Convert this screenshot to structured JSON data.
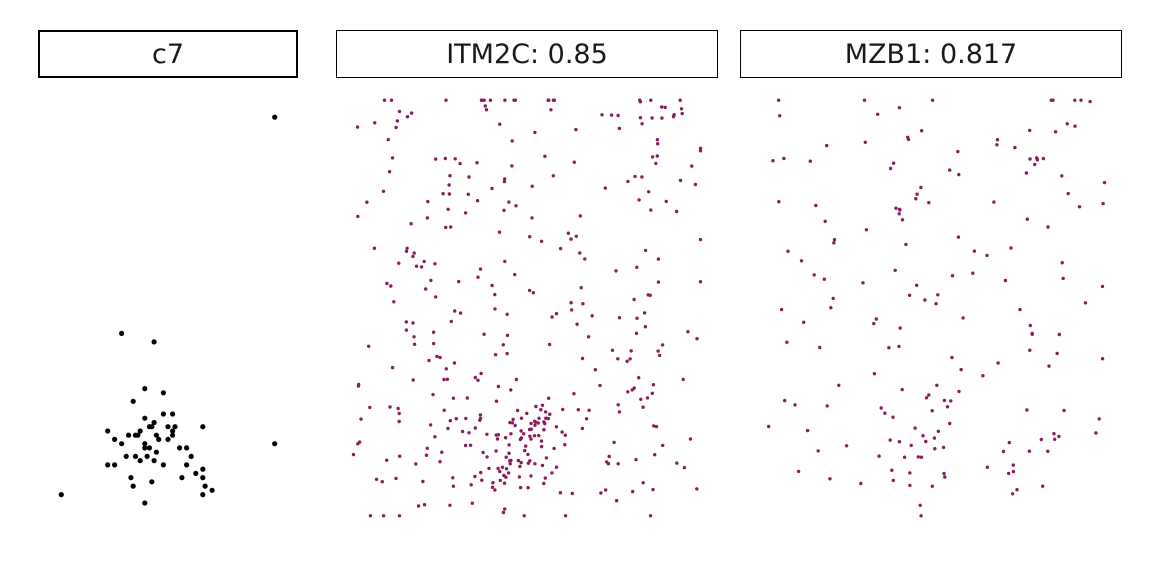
{
  "panels": [
    {
      "title": "c7",
      "color": "#000000"
    },
    {
      "title": "ITM2C: 0.85",
      "color": "#8b1a5e"
    },
    {
      "title": "MZB1: 0.817",
      "color": "#8b1a5e"
    }
  ],
  "chart_data": [
    {
      "type": "scatter",
      "title": "c7",
      "color": "#000000",
      "xlim": [
        0,
        100
      ],
      "ylim": [
        0,
        100
      ],
      "grid": false,
      "points": [
        [
          96,
          95
        ],
        [
          96,
          18
        ],
        [
          4,
          6
        ],
        [
          52,
          20
        ],
        [
          44,
          14
        ],
        [
          65,
          22
        ],
        [
          65,
          10
        ],
        [
          30,
          44
        ],
        [
          44,
          42
        ],
        [
          48,
          25
        ],
        [
          35,
          28
        ],
        [
          40,
          31
        ],
        [
          52,
          25
        ],
        [
          53,
          22
        ],
        [
          45,
          20
        ],
        [
          43,
          22
        ],
        [
          30,
          18
        ],
        [
          36,
          20
        ],
        [
          38,
          21
        ],
        [
          40,
          24
        ],
        [
          32,
          15
        ],
        [
          34,
          10
        ],
        [
          35,
          8
        ],
        [
          40,
          4
        ],
        [
          48,
          13
        ],
        [
          56,
          10
        ],
        [
          62,
          11
        ],
        [
          66,
          8
        ],
        [
          69,
          7
        ],
        [
          65,
          6
        ],
        [
          58,
          13
        ],
        [
          58,
          17
        ],
        [
          55,
          17
        ],
        [
          48,
          30
        ],
        [
          44,
          23
        ],
        [
          37,
          20
        ],
        [
          27,
          19
        ],
        [
          36,
          15
        ],
        [
          38,
          14
        ],
        [
          50,
          22
        ],
        [
          43,
          9
        ],
        [
          27,
          13
        ],
        [
          24,
          13
        ],
        [
          40,
          18
        ],
        [
          42,
          17
        ],
        [
          41,
          15
        ],
        [
          45,
          16
        ],
        [
          46,
          19
        ],
        [
          52,
          21
        ],
        [
          24,
          21
        ],
        [
          33,
          20
        ],
        [
          40,
          17
        ],
        [
          42,
          22
        ],
        [
          50,
          19
        ],
        [
          60,
          15
        ],
        [
          65,
          12
        ]
      ]
    },
    {
      "type": "scatter",
      "title": "ITM2C: 0.85",
      "color": "#8b1a5e",
      "xlim": [
        0,
        100
      ],
      "ylim": [
        0,
        100
      ],
      "grid": false,
      "clusters": [
        {
          "x": 45,
          "y": 18,
          "n": 40,
          "s": 8
        },
        {
          "x": 52,
          "y": 20,
          "n": 30,
          "s": 5
        },
        {
          "x": 50,
          "y": 10,
          "n": 20,
          "s": 6
        },
        {
          "x": 35,
          "y": 12,
          "n": 18,
          "s": 8
        },
        {
          "x": 72,
          "y": 12,
          "n": 20,
          "s": 9
        },
        {
          "x": 15,
          "y": 10,
          "n": 16,
          "s": 8
        },
        {
          "x": 18,
          "y": 25,
          "n": 16,
          "s": 10
        },
        {
          "x": 90,
          "y": 20,
          "n": 14,
          "s": 8
        },
        {
          "x": 30,
          "y": 40,
          "n": 22,
          "s": 12
        },
        {
          "x": 60,
          "y": 40,
          "n": 22,
          "s": 14
        },
        {
          "x": 80,
          "y": 40,
          "n": 18,
          "s": 10
        },
        {
          "x": 20,
          "y": 55,
          "n": 18,
          "s": 12
        },
        {
          "x": 50,
          "y": 55,
          "n": 22,
          "s": 14
        },
        {
          "x": 82,
          "y": 60,
          "n": 16,
          "s": 10
        },
        {
          "x": 25,
          "y": 78,
          "n": 22,
          "s": 12
        },
        {
          "x": 55,
          "y": 78,
          "n": 22,
          "s": 14
        },
        {
          "x": 85,
          "y": 82,
          "n": 16,
          "s": 10
        },
        {
          "x": 15,
          "y": 93,
          "n": 14,
          "s": 8
        },
        {
          "x": 45,
          "y": 93,
          "n": 14,
          "s": 10
        },
        {
          "x": 92,
          "y": 97,
          "n": 8,
          "s": 2
        },
        {
          "x": 78,
          "y": 92,
          "n": 8,
          "s": 5
        }
      ]
    },
    {
      "type": "scatter",
      "title": "MZB1: 0.817",
      "color": "#8b1a5e",
      "xlim": [
        0,
        100
      ],
      "ylim": [
        0,
        100
      ],
      "grid": false,
      "clusters": [
        {
          "x": 48,
          "y": 20,
          "n": 22,
          "s": 7
        },
        {
          "x": 45,
          "y": 10,
          "n": 12,
          "s": 5
        },
        {
          "x": 70,
          "y": 12,
          "n": 10,
          "s": 4
        },
        {
          "x": 15,
          "y": 20,
          "n": 8,
          "s": 6
        },
        {
          "x": 82,
          "y": 20,
          "n": 10,
          "s": 6
        },
        {
          "x": 35,
          "y": 38,
          "n": 8,
          "s": 6
        },
        {
          "x": 15,
          "y": 45,
          "n": 10,
          "s": 10
        },
        {
          "x": 60,
          "y": 45,
          "n": 10,
          "s": 10
        },
        {
          "x": 85,
          "y": 45,
          "n": 10,
          "s": 6
        },
        {
          "x": 25,
          "y": 65,
          "n": 12,
          "s": 10
        },
        {
          "x": 55,
          "y": 65,
          "n": 12,
          "s": 10
        },
        {
          "x": 85,
          "y": 70,
          "n": 10,
          "s": 8
        },
        {
          "x": 15,
          "y": 85,
          "n": 8,
          "s": 8
        },
        {
          "x": 48,
          "y": 88,
          "n": 12,
          "s": 10
        },
        {
          "x": 80,
          "y": 90,
          "n": 10,
          "s": 6
        },
        {
          "x": 40,
          "y": 73,
          "n": 4,
          "s": 1.5
        },
        {
          "x": 80,
          "y": 85,
          "n": 4,
          "s": 1
        },
        {
          "x": 92,
          "y": 99,
          "n": 3,
          "s": 1
        }
      ]
    }
  ]
}
